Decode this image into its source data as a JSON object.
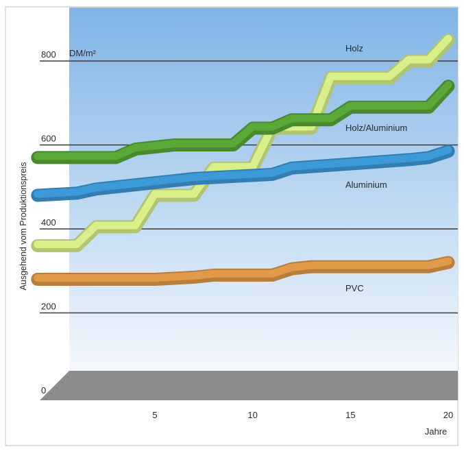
{
  "chart_data": {
    "type": "line",
    "ylabel": "Ausgehend vom Produktionspreis",
    "xlabel": "Jahre",
    "y_unit": "DM/m²",
    "ylim": [
      0,
      900
    ],
    "xlim": [
      -1.5,
      20.5
    ],
    "y_ticks": [
      0,
      200,
      400,
      600,
      800
    ],
    "x_ticks": [
      5,
      10,
      15,
      20
    ],
    "grid": true,
    "legend": "inline labels at right",
    "colors": {
      "background_gradient_top": "#7fb4e6",
      "background_gradient_bottom": "#f4f8fc",
      "floor": "#8c8c8c"
    },
    "series": [
      {
        "name": "Holz",
        "color": "#d9ef8a",
        "x": [
          -1,
          1,
          2,
          4,
          5,
          7,
          8,
          10,
          11,
          13,
          14,
          17,
          18,
          19,
          20
        ],
        "y": [
          360,
          360,
          405,
          405,
          480,
          480,
          545,
          545,
          640,
          640,
          760,
          760,
          800,
          800,
          850
        ]
      },
      {
        "name": "Holz/Aluminium",
        "color": "#5aa838",
        "x": [
          -1,
          3,
          4,
          6,
          7,
          9,
          10,
          11,
          12,
          14,
          15,
          19,
          20
        ],
        "y": [
          570,
          570,
          590,
          600,
          600,
          600,
          640,
          640,
          660,
          660,
          690,
          690,
          740
        ]
      },
      {
        "name": "Aluminium",
        "color": "#3d9ad8",
        "x": [
          -1,
          1,
          2,
          5,
          7,
          9,
          11,
          12,
          15,
          18,
          19,
          20
        ],
        "y": [
          480,
          485,
          495,
          510,
          520,
          525,
          530,
          545,
          555,
          565,
          570,
          585
        ]
      },
      {
        "name": "PVC",
        "color": "#e09a48",
        "x": [
          -1,
          4,
          5,
          7,
          8,
          10,
          11,
          12,
          13,
          19,
          20
        ],
        "y": [
          280,
          280,
          280,
          285,
          290,
          290,
          290,
          305,
          310,
          310,
          320
        ]
      }
    ]
  }
}
